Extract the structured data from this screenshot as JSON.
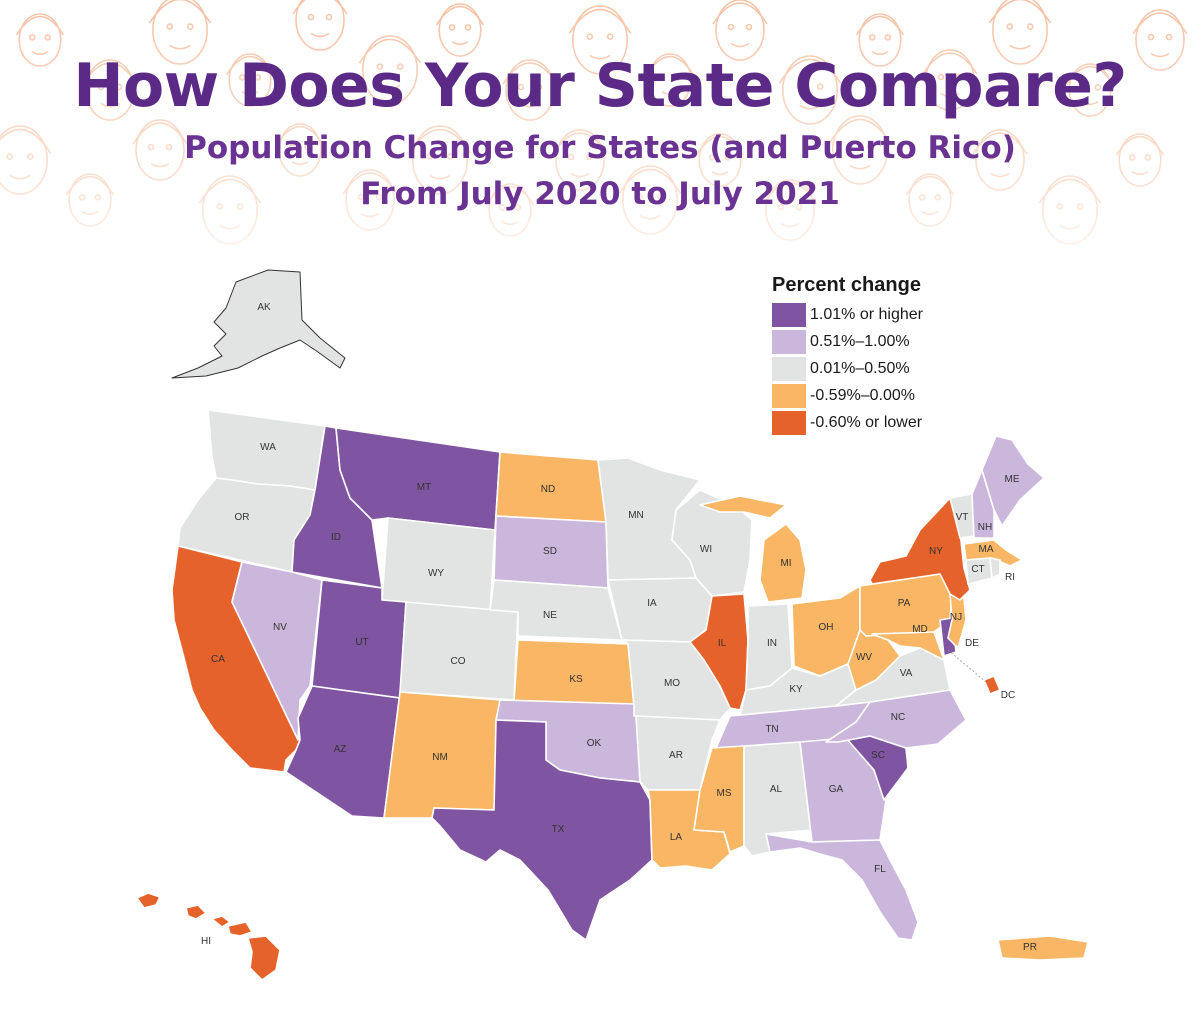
{
  "title": "How Does Your State Compare?",
  "subtitle_line1": "Population Change for States (and Puerto Rico)",
  "subtitle_line2": "From July 2020 to July 2021",
  "colors": {
    "title": "#5b2a86",
    "subtitle": "#6a3293",
    "banner_faces": "#f6c3a6",
    "state_border": "#ffffff"
  },
  "legend": {
    "title": "Percent change",
    "items": [
      {
        "key": "c1",
        "label": "1.01% or higher",
        "color": "#7f54a0"
      },
      {
        "key": "c2",
        "label": "0.51%–1.00%",
        "color": "#cbb6dc"
      },
      {
        "key": "c3",
        "label": "0.01%–0.50%",
        "color": "#e2e4e3"
      },
      {
        "key": "c4",
        "label": "-0.59%–0.00%",
        "color": "#f9b664"
      },
      {
        "key": "c5",
        "label": "-0.60% or lower",
        "color": "#e5632b"
      }
    ]
  },
  "states": {
    "AK": "c3",
    "HI": "c5",
    "WA": "c3",
    "OR": "c3",
    "CA": "c5",
    "ID": "c1",
    "NV": "c2",
    "MT": "c1",
    "WY": "c3",
    "UT": "c1",
    "AZ": "c1",
    "CO": "c3",
    "NM": "c4",
    "ND": "c4",
    "SD": "c2",
    "NE": "c3",
    "KS": "c4",
    "OK": "c2",
    "TX": "c1",
    "MN": "c3",
    "IA": "c3",
    "MO": "c3",
    "AR": "c3",
    "LA": "c4",
    "WI": "c3",
    "IL": "c5",
    "MI": "c4",
    "IN": "c3",
    "OH": "c4",
    "KY": "c3",
    "TN": "c2",
    "MS": "c4",
    "AL": "c3",
    "GA": "c2",
    "FL": "c2",
    "SC": "c1",
    "NC": "c2",
    "VA": "c3",
    "WV": "c4",
    "PA": "c4",
    "NY": "c5",
    "VT": "c3",
    "NH": "c2",
    "ME": "c2",
    "MA": "c4",
    "RI": "c3",
    "CT": "c3",
    "NJ": "c4",
    "DE": "c1",
    "MD": "c4",
    "DC": "c5",
    "PR": "c4"
  }
}
